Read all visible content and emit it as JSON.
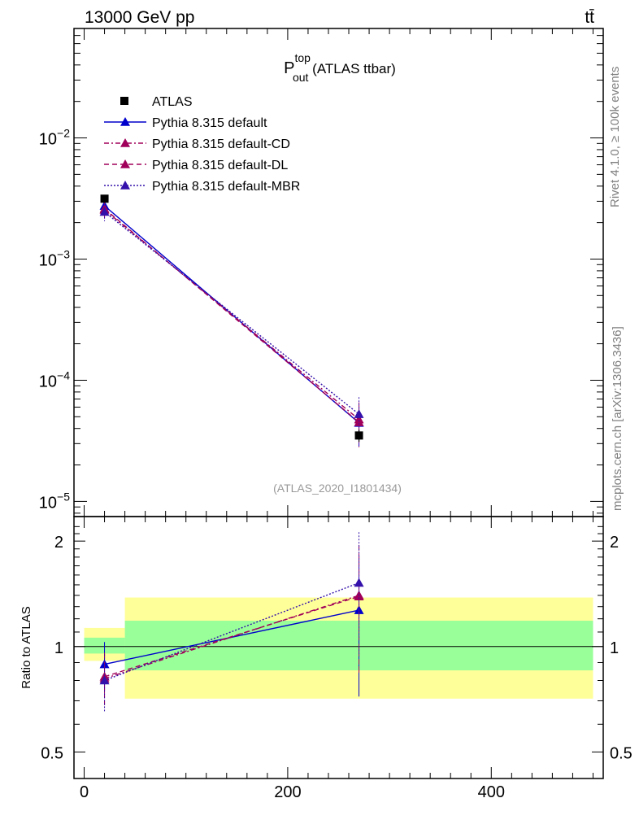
{
  "header": {
    "energy_label": "13000 GeV pp",
    "process_label": "tt̄"
  },
  "side_labels": {
    "rivet": "Rivet 4.1.0, ≥ 100k events",
    "mcplots": "mcplots.cern.ch [arXiv:1306.3436]"
  },
  "chart_data": {
    "type": "line",
    "title": {
      "main": "P",
      "sup": "top",
      "sub": "out",
      "suffix": " (ATLAS ttbar)"
    },
    "analysis_label": "(ATLAS_2020_I1801434)",
    "x_range": [
      -10,
      510
    ],
    "x_ticks": [
      0,
      200,
      400
    ],
    "x_tick_labels": [
      "0",
      "200",
      "400"
    ],
    "main_panel": {
      "yscale": "log",
      "ylim": [
        7.5e-06,
        0.08
      ],
      "y_tick_labels": [
        {
          "base": "10",
          "exp": "−2",
          "value": 0.01
        },
        {
          "base": "10",
          "exp": "−3",
          "value": 0.001
        },
        {
          "base": "10",
          "exp": "−4",
          "value": 0.0001
        },
        {
          "base": "10",
          "exp": "−5",
          "value": 1e-05
        }
      ]
    },
    "ratio_panel": {
      "ylabel": "Ratio to ATLAS",
      "ylim": [
        0.42,
        2.35
      ],
      "y_ticks": [
        0.5,
        1,
        2
      ],
      "y_tick_labels": [
        "0.5",
        "1",
        "2"
      ],
      "bands": [
        {
          "x": [
            0,
            40
          ],
          "inner": [
            0.955,
            1.06
          ],
          "outer": [
            0.91,
            1.13
          ]
        },
        {
          "x": [
            40,
            500
          ],
          "inner": [
            0.855,
            1.185
          ],
          "outer": [
            0.71,
            1.38
          ]
        }
      ]
    },
    "data": {
      "name": "ATLAS",
      "color": "#000000",
      "points": [
        {
          "x": 20,
          "y": 0.00315,
          "err": 0.00015
        },
        {
          "x": 270,
          "y": 3.5e-05,
          "err": 4e-06
        }
      ]
    },
    "series": [
      {
        "name": "Pythia 8.315 default",
        "color": "#0000cc",
        "dash": "",
        "values": [
          0.00275,
          4.45e-05
        ],
        "err": [
          0.0004,
          1.6e-05
        ],
        "ratio": [
          0.89,
          1.27
        ],
        "ratio_err": [
          0.14,
          0.55
        ]
      },
      {
        "name": "Pythia 8.315 default-CD",
        "color": "#a0005a",
        "dash": "6,3,2,3",
        "values": [
          0.00255,
          4.75e-05
        ],
        "err": [
          0.0004,
          1.8e-05
        ],
        "ratio": [
          0.81,
          1.4
        ],
        "ratio_err": [
          0.14,
          0.55
        ]
      },
      {
        "name": "Pythia 8.315 default-DL",
        "color": "#a0005a",
        "dash": "6,4",
        "values": [
          0.0026,
          4.5e-05
        ],
        "err": [
          0.0004,
          1.7e-05
        ],
        "ratio": [
          0.82,
          1.39
        ],
        "ratio_err": [
          0.14,
          0.55
        ]
      },
      {
        "name": "Pythia 8.315 default-MBR",
        "color": "#3311aa",
        "dash": "2,2",
        "values": [
          0.00245,
          5.25e-05
        ],
        "err": [
          0.0004,
          2e-05
        ],
        "ratio": [
          0.8,
          1.52
        ],
        "ratio_err": [
          0.15,
          0.6
        ]
      }
    ]
  }
}
